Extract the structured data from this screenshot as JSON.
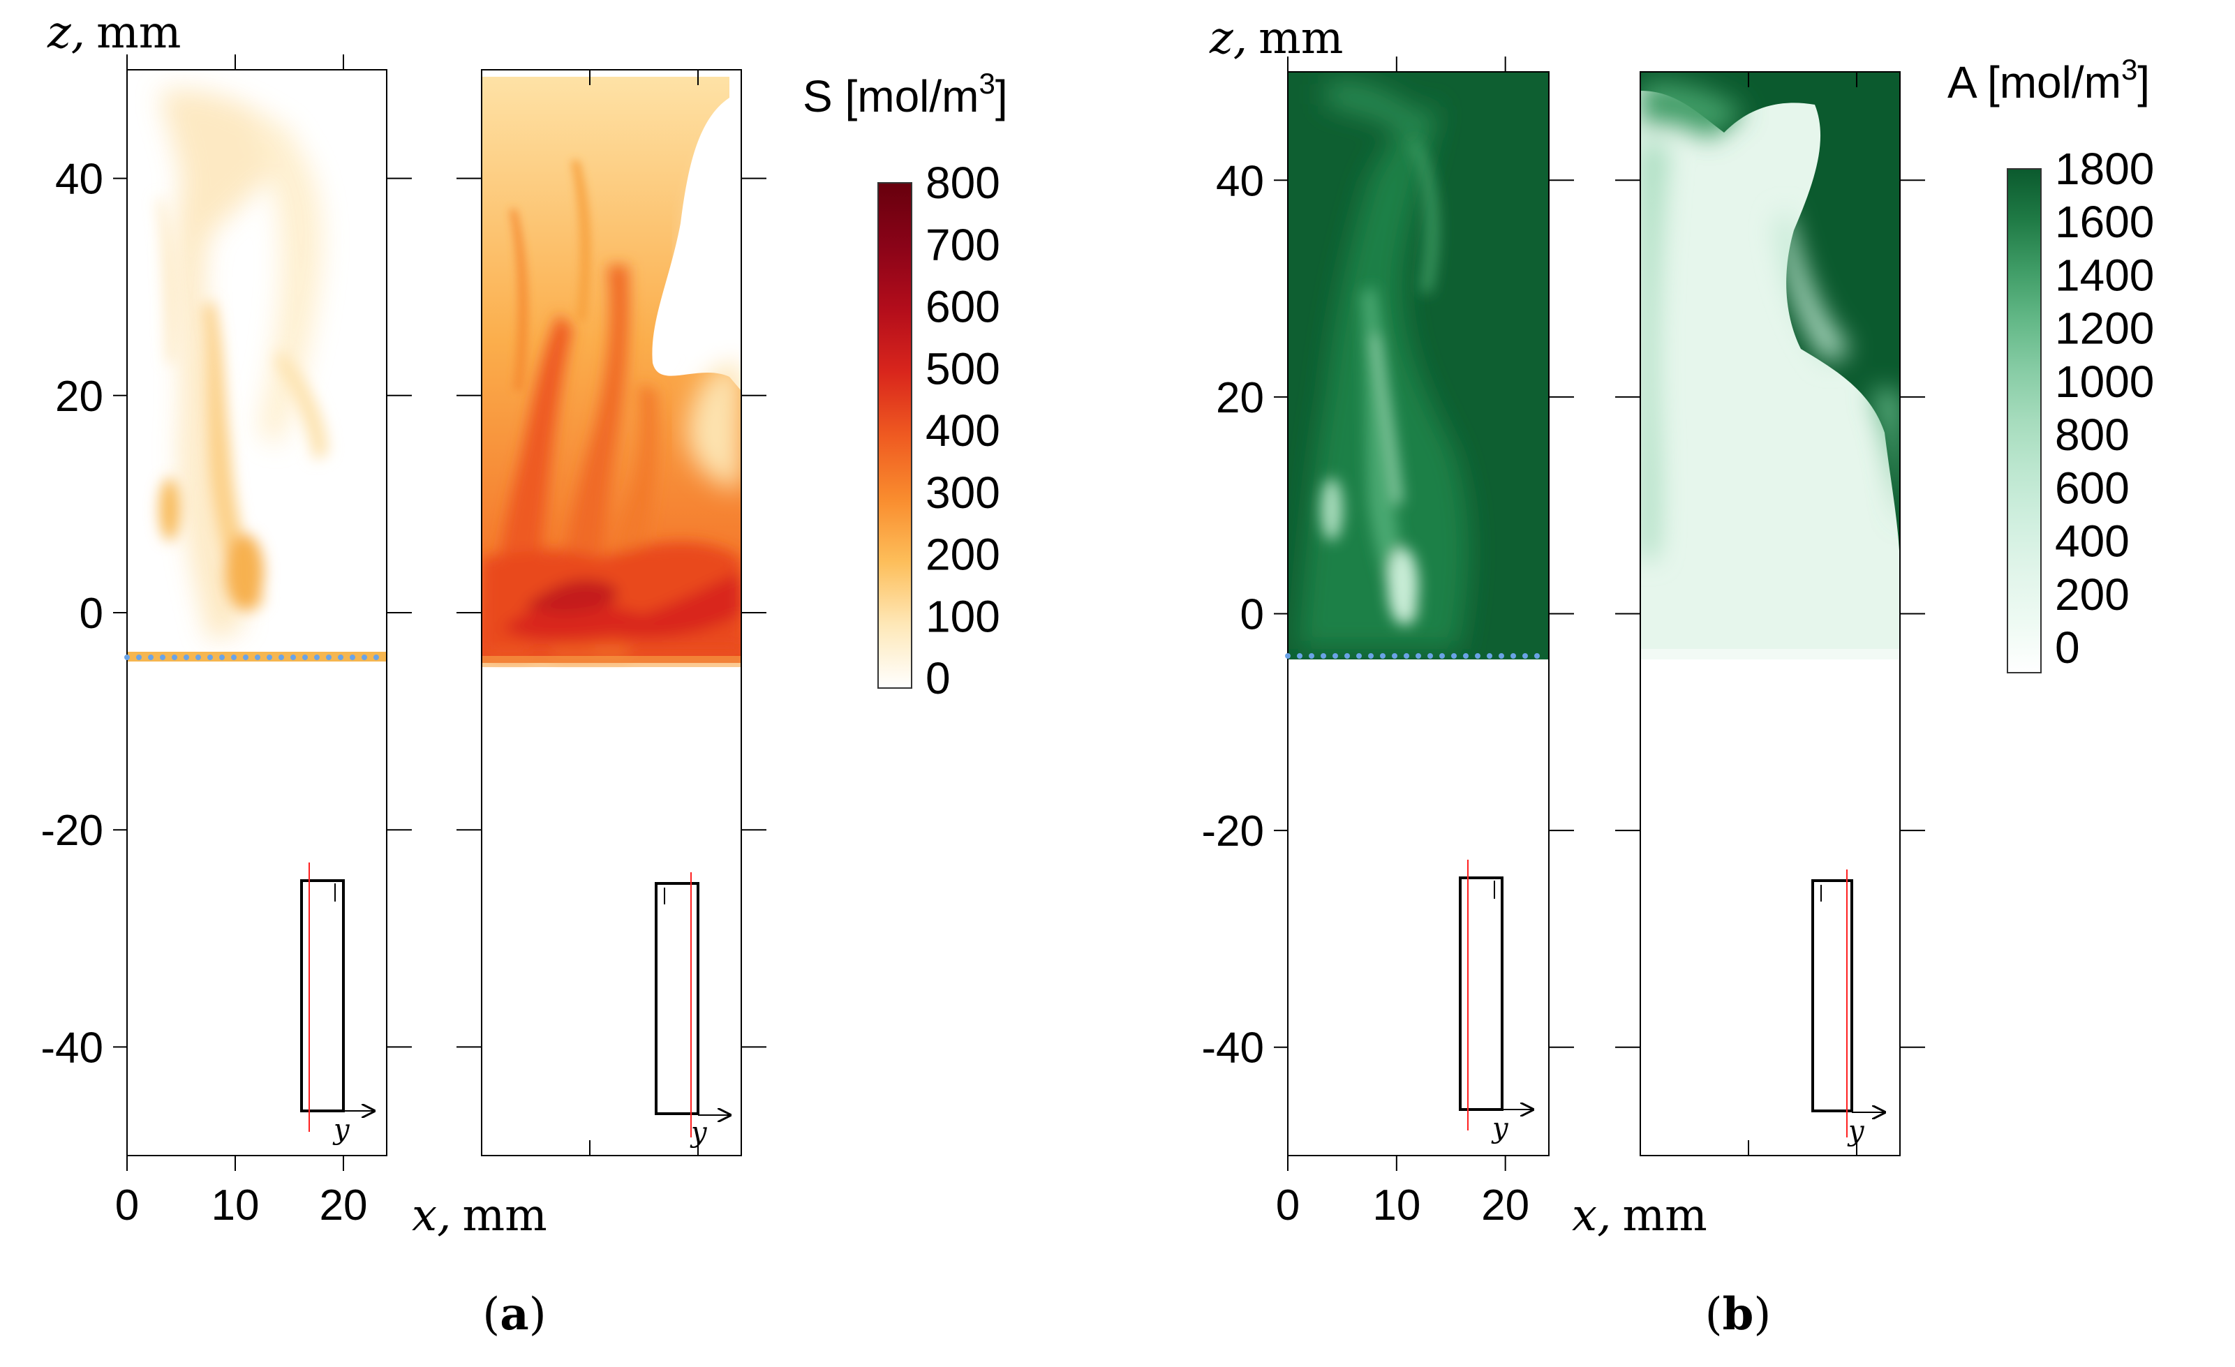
{
  "figure": {
    "panels": [
      {
        "id": "a",
        "caption": "(a)",
        "z_axis_label": "z, mm",
        "x_axis_label": "x, mm",
        "y_inset_label": "y",
        "colorbar": {
          "title_text": "S [mol/m",
          "title_sup": "3",
          "title_close": "]",
          "ticks": [
            "800",
            "700",
            "600",
            "500",
            "400",
            "300",
            "200",
            "100",
            "0"
          ],
          "colors": [
            "#ffffff",
            "#fee8b8",
            "#fdbe5a",
            "#f98c2e",
            "#ef5a21",
            "#d9261c",
            "#b30d1b",
            "#8a0318",
            "#67000d"
          ]
        }
      },
      {
        "id": "b",
        "caption": "(b)",
        "z_axis_label": "z, mm",
        "x_axis_label": "x, mm",
        "y_inset_label": "y",
        "colorbar": {
          "title_text": "A [mol/m",
          "title_sup": "3",
          "title_close": "]",
          "ticks": [
            "1800",
            "1600",
            "1400",
            "1200",
            "1000",
            "800",
            "600",
            "400",
            "200",
            "0"
          ],
          "colors": [
            "#ffffff",
            "#eefaf3",
            "#e1f5ea",
            "#d0efdf",
            "#bde7d0",
            "#a6dcbd",
            "#87cca5",
            "#63b887",
            "#3f9c66",
            "#1f7a45",
            "#0b5a2e"
          ]
        }
      }
    ]
  },
  "chart_data": [
    {
      "type": "heatmap",
      "panel": "a",
      "quantity": "S [mol/m3]",
      "xlabel": "x, mm",
      "ylabel": "z, mm",
      "x_ticks": [
        0,
        10,
        20
      ],
      "z_ticks": [
        40,
        20,
        0,
        -20,
        -40
      ],
      "xlim": [
        0,
        24
      ],
      "zlim": [
        -50,
        50
      ],
      "colorbar_range": [
        0,
        800
      ],
      "colorbar_ticks": [
        0,
        100,
        200,
        300,
        400,
        500,
        600,
        700,
        800
      ],
      "maps": [
        {
          "region_z": [
            -4,
            50
          ],
          "typical_S": [
            0,
            200
          ],
          "peak_S": 250
        },
        {
          "region_z": [
            -5,
            50
          ],
          "typical_S": [
            100,
            400
          ],
          "peak_S": 450
        }
      ]
    },
    {
      "type": "heatmap",
      "panel": "b",
      "quantity": "A [mol/m3]",
      "xlabel": "x, mm",
      "ylabel": "z, mm",
      "x_ticks": [
        0,
        10,
        20
      ],
      "z_ticks": [
        40,
        20,
        0,
        -20,
        -40
      ],
      "xlim": [
        0,
        24
      ],
      "zlim": [
        -50,
        50
      ],
      "colorbar_range": [
        0,
        1800
      ],
      "colorbar_ticks": [
        0,
        200,
        400,
        600,
        800,
        1000,
        1200,
        1400,
        1600,
        1800
      ],
      "maps": [
        {
          "region_z": [
            -4,
            50
          ],
          "typical_A": [
            1200,
            1800
          ],
          "min_A": 900
        },
        {
          "region_z": [
            -4,
            50
          ],
          "typical_A": [
            200,
            1800
          ],
          "min_A": 100
        }
      ]
    }
  ]
}
